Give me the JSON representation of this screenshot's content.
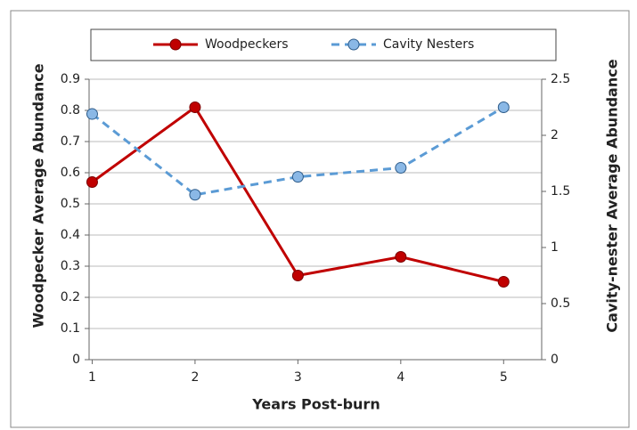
{
  "chart_data": {
    "type": "line",
    "x": [
      1,
      2,
      3,
      4,
      5
    ],
    "xlabel": "Years Post-burn",
    "ylabel": "Woodpecker Average Abundance",
    "y2label": "Cavity-nester Average Abundance",
    "xlim": [
      0.97,
      5.37
    ],
    "xticks": [
      1,
      2,
      3,
      4,
      5
    ],
    "ylim": [
      0,
      0.9
    ],
    "yticks": [
      0,
      0.1,
      0.2,
      0.3,
      0.4,
      0.5,
      0.6,
      0.7,
      0.8,
      0.9
    ],
    "y2lim": [
      0,
      2.5
    ],
    "y2ticks": [
      0,
      0.5,
      1,
      1.5,
      2,
      2.5
    ],
    "grid": true,
    "legend": "top",
    "series": [
      {
        "name": "Woodpeckers",
        "color": "#c00000",
        "values": [
          0.57,
          0.81,
          0.27,
          0.33,
          0.25
        ]
      },
      {
        "name": "Cavity Nesters",
        "color": "#5b9bd5",
        "axis": "y2",
        "dashed": true,
        "values": [
          2.19,
          1.47,
          1.63,
          1.71,
          2.25
        ]
      }
    ]
  }
}
